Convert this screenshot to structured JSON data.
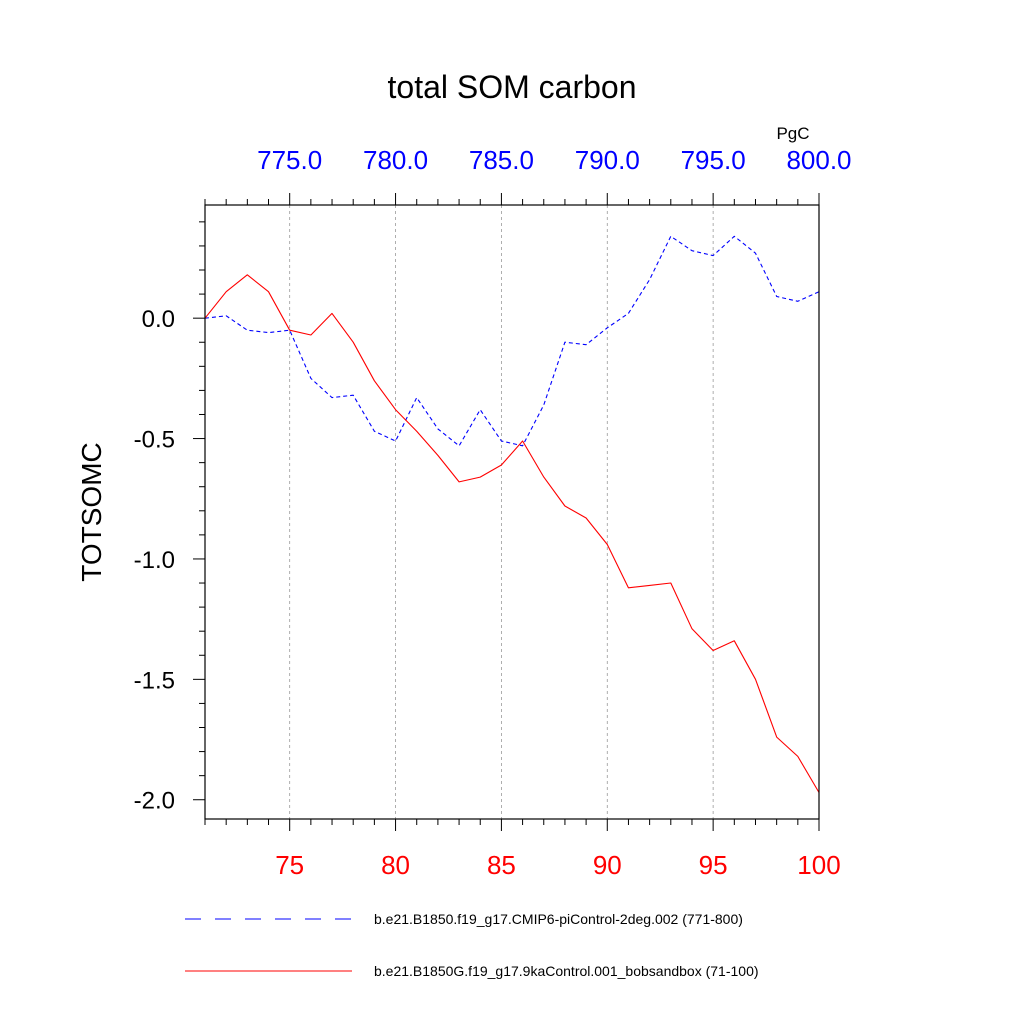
{
  "chart_data": {
    "type": "line",
    "title": "total SOM carbon",
    "units": "PgC",
    "ylabel": "TOTSOMC",
    "ylim": [
      -2.08,
      0.47
    ],
    "yticks": [
      -2.0,
      -1.5,
      -1.0,
      -0.5,
      0.0
    ],
    "ytick_labels": [
      "-2.0",
      "-1.5",
      "-1.0",
      "-0.5",
      "0.0"
    ],
    "grid_x": true,
    "top_axis": {
      "xlim": [
        771,
        800
      ],
      "ticks": [
        775,
        780,
        785,
        790,
        795,
        800
      ],
      "tick_labels": [
        "775.0",
        "780.0",
        "785.0",
        "790.0",
        "795.0",
        "800.0"
      ],
      "color": "#0000ff"
    },
    "bottom_axis": {
      "xlim": [
        71,
        100
      ],
      "ticks": [
        75,
        80,
        85,
        90,
        95,
        100
      ],
      "tick_labels": [
        "75",
        "80",
        "85",
        "90",
        "95",
        "100"
      ],
      "color": "#ff0000"
    },
    "series": [
      {
        "name": "b.e21.B1850.f19_g17.CMIP6-piControl-2deg.002 (771-800)",
        "axis": "top",
        "color": "#0000ff",
        "style": "dashed",
        "x": [
          771,
          772,
          773,
          774,
          775,
          776,
          777,
          778,
          779,
          780,
          781,
          782,
          783,
          784,
          785,
          786,
          787,
          788,
          789,
          790,
          791,
          792,
          793,
          794,
          795,
          796,
          797,
          798,
          799,
          800
        ],
        "values": [
          0.0,
          0.01,
          -0.05,
          -0.06,
          -0.05,
          -0.25,
          -0.33,
          -0.32,
          -0.47,
          -0.51,
          -0.33,
          -0.46,
          -0.53,
          -0.38,
          -0.51,
          -0.53,
          -0.36,
          -0.1,
          -0.11,
          -0.04,
          0.02,
          0.16,
          0.34,
          0.28,
          0.26,
          0.34,
          0.27,
          0.09,
          0.07,
          0.11
        ]
      },
      {
        "name": "b.e21.B1850G.f19_g17.9kaControl.001_bobsandbox (71-100)",
        "axis": "bottom",
        "color": "#ff0000",
        "style": "solid",
        "x": [
          71,
          72,
          73,
          74,
          75,
          76,
          77,
          78,
          79,
          80,
          81,
          82,
          83,
          84,
          85,
          86,
          87,
          88,
          89,
          90,
          91,
          92,
          93,
          94,
          95,
          96,
          97,
          98,
          99,
          100
        ],
        "values": [
          0.0,
          0.11,
          0.18,
          0.11,
          -0.05,
          -0.07,
          0.02,
          -0.1,
          -0.26,
          -0.38,
          -0.47,
          -0.57,
          -0.68,
          -0.66,
          -0.61,
          -0.51,
          -0.66,
          -0.78,
          -0.83,
          -0.94,
          -1.12,
          -1.11,
          -1.1,
          -1.29,
          -1.38,
          -1.34,
          -1.5,
          -1.74,
          -1.82,
          -1.97
        ]
      }
    ]
  }
}
